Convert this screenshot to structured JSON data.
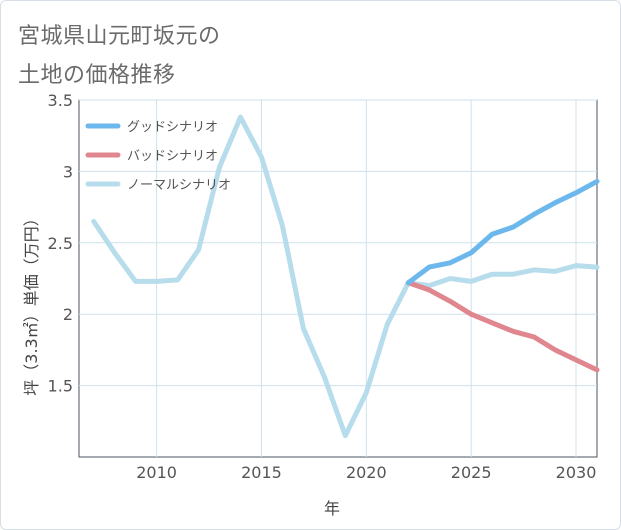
{
  "title_lines": [
    "宮城県山元町坂元の",
    "土地の価格推移"
  ],
  "chart_data": {
    "type": "line",
    "xlabel": "年",
    "ylabel": "坪（3.3㎡）単価（万円）",
    "xlim": [
      2006.3,
      2031
    ],
    "ylim": [
      1.0,
      3.5
    ],
    "xticks": [
      2010,
      2015,
      2020,
      2025,
      2030
    ],
    "yticks": [
      1.5,
      2,
      2.5,
      3,
      3.5
    ],
    "ytick_labels": [
      "1.5",
      "2",
      "2.5",
      "3",
      "3.5"
    ],
    "grid": true,
    "legend_position": "top-left",
    "series": [
      {
        "name": "グッドシナリオ",
        "color": "#6cb8ec",
        "x": [
          2022,
          2023,
          2024,
          2025,
          2026,
          2027,
          2028,
          2029,
          2030,
          2031
        ],
        "y": [
          2.22,
          2.33,
          2.36,
          2.43,
          2.56,
          2.61,
          2.7,
          2.78,
          2.85,
          2.93
        ]
      },
      {
        "name": "バッドシナリオ",
        "color": "#e0868f",
        "x": [
          2022,
          2023,
          2024,
          2025,
          2026,
          2027,
          2028,
          2029,
          2030,
          2031
        ],
        "y": [
          2.22,
          2.17,
          2.09,
          2.0,
          1.94,
          1.88,
          1.84,
          1.75,
          1.68,
          1.61
        ]
      },
      {
        "name": "ノーマルシナリオ",
        "color": "#b7dcec",
        "x": [
          2007,
          2008,
          2009,
          2010,
          2011,
          2012,
          2013,
          2014,
          2015,
          2016,
          2017,
          2018,
          2019,
          2020,
          2021,
          2022,
          2023,
          2024,
          2025,
          2026,
          2027,
          2028,
          2029,
          2030,
          2031
        ],
        "y": [
          2.65,
          2.43,
          2.23,
          2.23,
          2.24,
          2.45,
          3.03,
          3.38,
          3.1,
          2.62,
          1.9,
          1.56,
          1.15,
          1.45,
          1.93,
          2.22,
          2.2,
          2.25,
          2.23,
          2.28,
          2.28,
          2.31,
          2.3,
          2.34,
          2.33
        ]
      }
    ]
  }
}
